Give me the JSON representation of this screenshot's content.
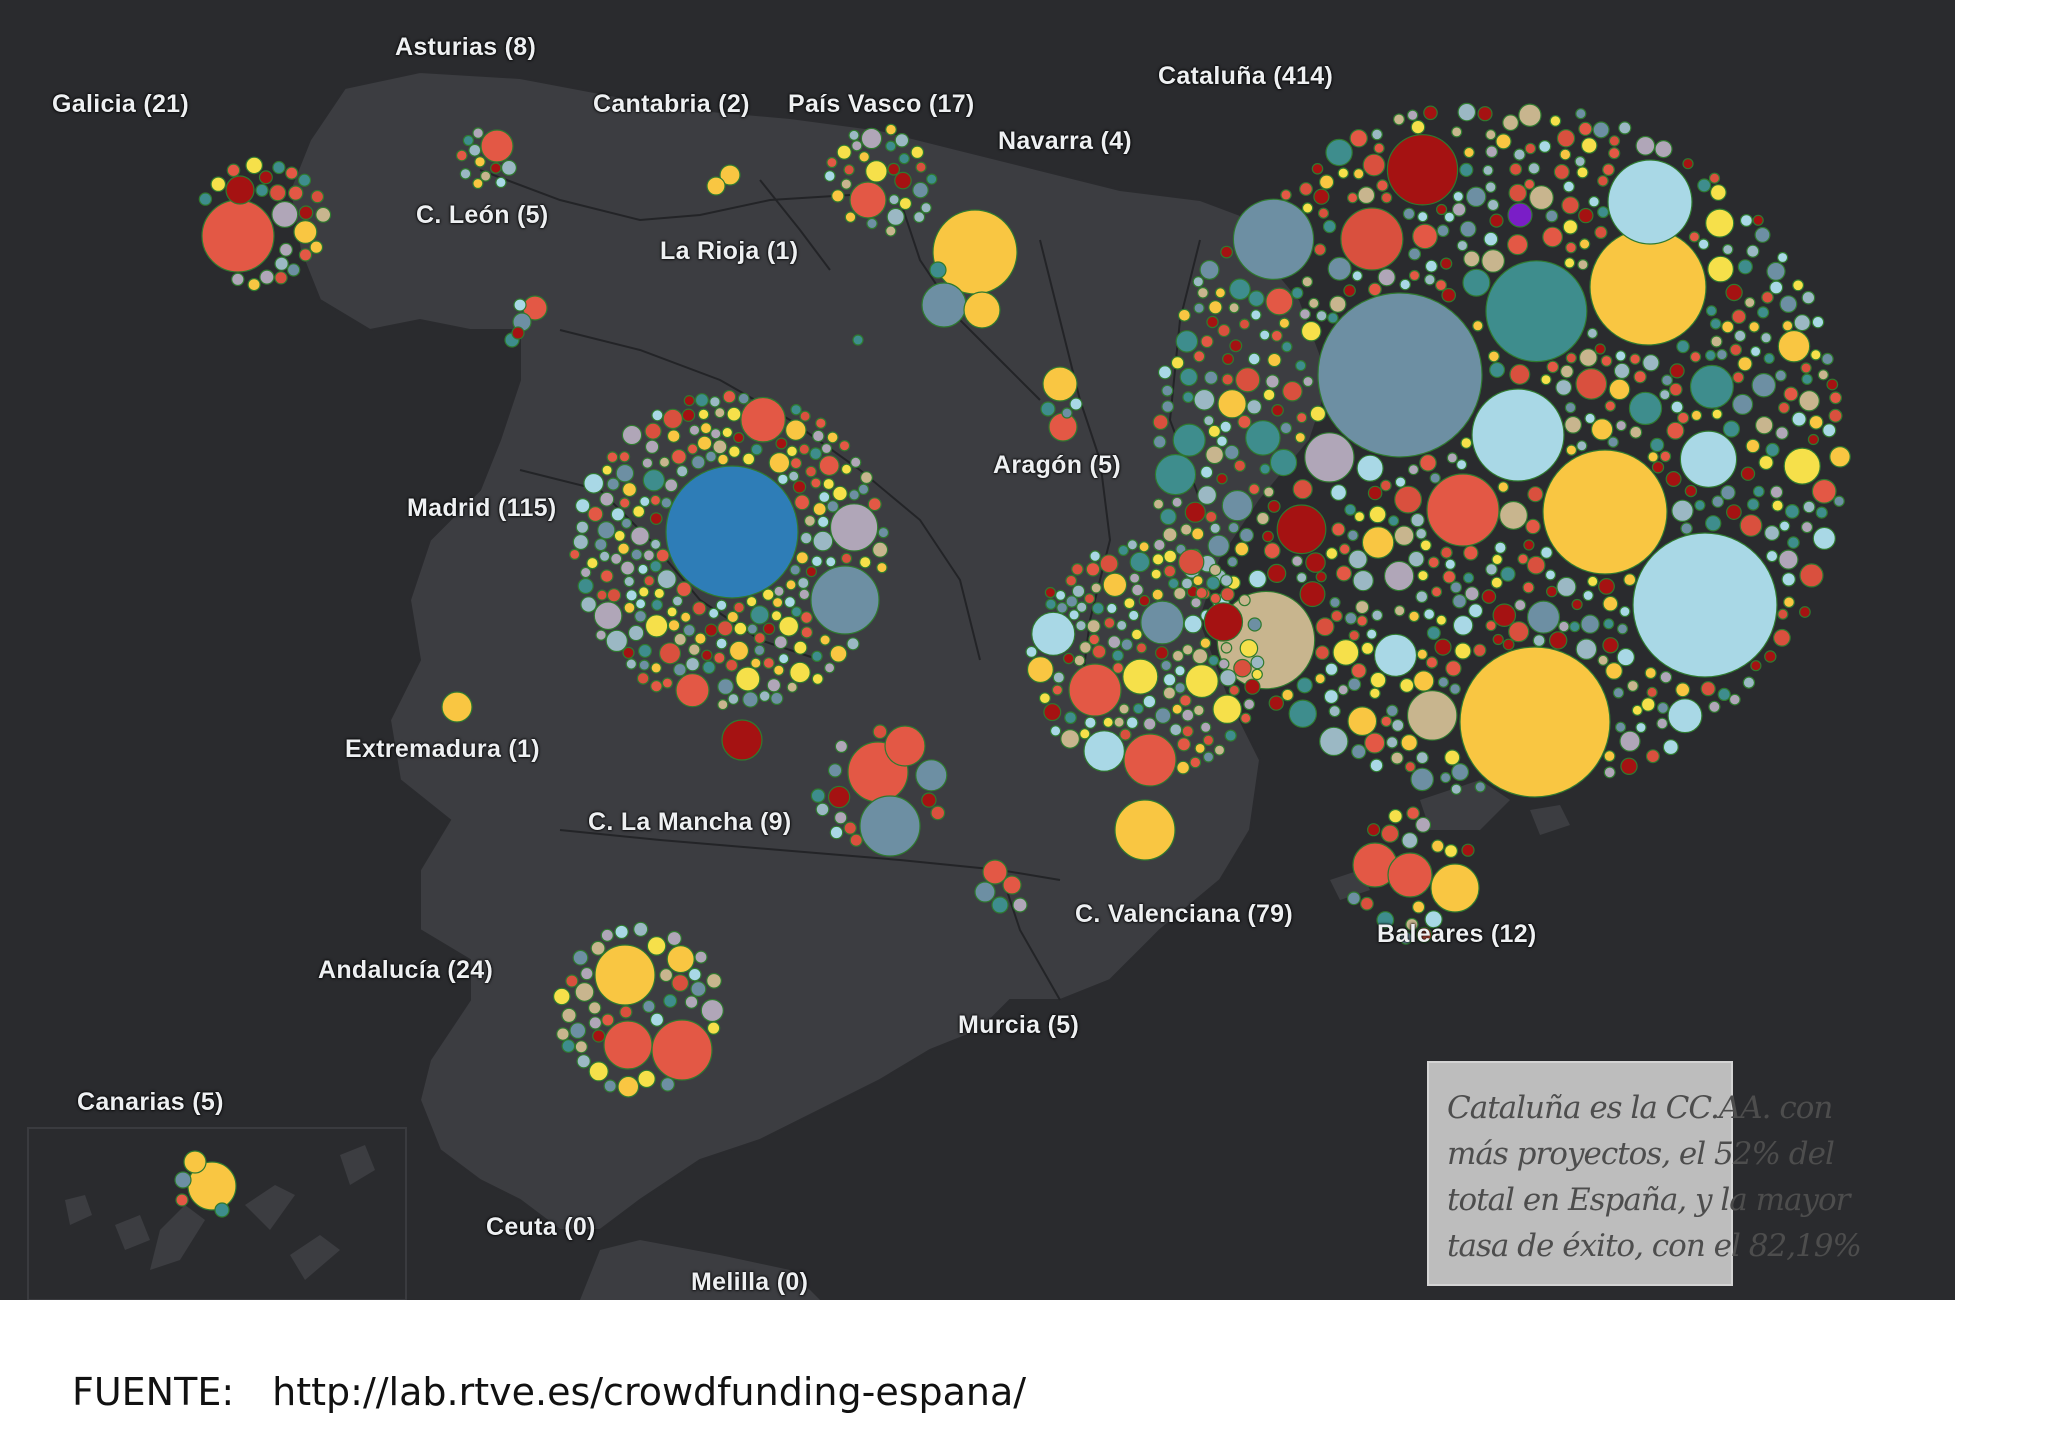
{
  "labels": {
    "asturias": "Asturias (8)",
    "galicia": "Galicia (21)",
    "cantabria": "Cantabria (2)",
    "pais_vasco": "País Vasco (17)",
    "cataluna": "Cataluña (414)",
    "navarra": "Navarra (4)",
    "c_leon": "C. León (5)",
    "la_rioja": "La Rioja (1)",
    "madrid": "Madrid (115)",
    "aragon": "Aragón (5)",
    "extremadura": "Extremadura (1)",
    "c_la_mancha": "C. La Mancha (9)",
    "c_valenciana": "C. Valenciana (79)",
    "baleares": "Baleares (12)",
    "andalucia": "Andalucía (24)",
    "murcia": "Murcia (5)",
    "canarias": "Canarias (5)",
    "ceuta": "Ceuta (0)",
    "melilla": "Melilla (0)"
  },
  "map_data": {
    "regions": [
      {
        "name": "Galicia",
        "projects": 21
      },
      {
        "name": "Asturias",
        "projects": 8
      },
      {
        "name": "Cantabria",
        "projects": 2
      },
      {
        "name": "País Vasco",
        "projects": 17
      },
      {
        "name": "Navarra",
        "projects": 4
      },
      {
        "name": "Cataluña",
        "projects": 414
      },
      {
        "name": "C. León",
        "projects": 5
      },
      {
        "name": "La Rioja",
        "projects": 1
      },
      {
        "name": "Madrid",
        "projects": 115
      },
      {
        "name": "Aragón",
        "projects": 5
      },
      {
        "name": "Extremadura",
        "projects": 1
      },
      {
        "name": "C. La Mancha",
        "projects": 9
      },
      {
        "name": "C. Valenciana",
        "projects": 79
      },
      {
        "name": "Baleares",
        "projects": 12
      },
      {
        "name": "Andalucía",
        "projects": 24
      },
      {
        "name": "Murcia",
        "projects": 5
      },
      {
        "name": "Canarias",
        "projects": 5
      },
      {
        "name": "Ceuta",
        "projects": 0
      },
      {
        "name": "Melilla",
        "projects": 0
      }
    ]
  },
  "colors": {
    "background": "#2a2b2e",
    "land": "#3c3d41",
    "border": "#1f2023",
    "palette": [
      "#f9c642",
      "#e35845",
      "#d9503e",
      "#6d8fa3",
      "#a9d8e6",
      "#c8b58e",
      "#3e8d8d",
      "#b0a6b8",
      "#f6e04a",
      "#a51212",
      "#9bb8c4"
    ],
    "madrid_center": "#2e7db7",
    "cataluna_center": "#6d8fa3",
    "cataluna_accent": "#7a1ec7"
  },
  "annotation": {
    "lines": [
      "Cataluña es la CC.AA. con",
      "más proyectos, el 52% del",
      "total en España, y la mayor",
      "tasa de éxito, con el 82,19%"
    ]
  },
  "source": {
    "label": "FUENTE:",
    "url": "http://lab.rtve.es/crowdfunding-espana/"
  }
}
